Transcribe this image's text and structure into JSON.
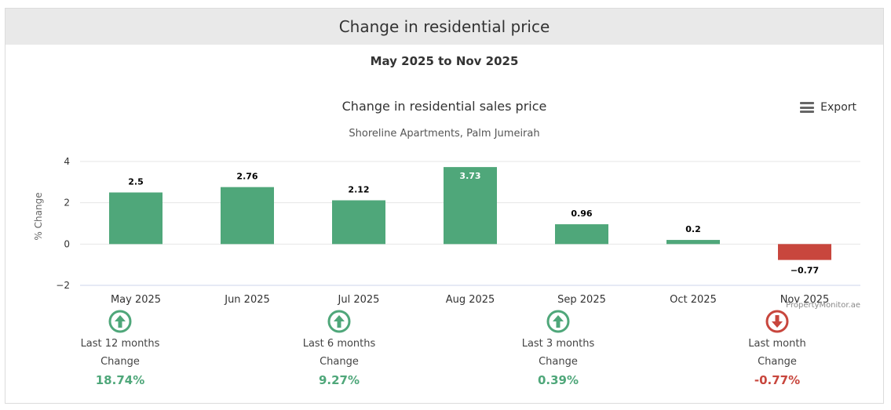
{
  "header": {
    "title": "Change in residential price"
  },
  "period": "May 2025 to Nov 2025",
  "export_label": "Export",
  "colors": {
    "positive": "#4fa77a",
    "negative": "#c8463d"
  },
  "chart_data": {
    "type": "bar",
    "title": "Change in residential sales price",
    "subtitle": "Shoreline Apartments, Palm Jumeirah",
    "ylabel": "% Change",
    "ylim": [
      -2,
      4
    ],
    "yticks": [
      "4",
      "2",
      "0",
      "−2"
    ],
    "categories": [
      "May 2025",
      "Jun 2025",
      "Jul 2025",
      "Aug 2025",
      "Sep 2025",
      "Oct 2025",
      "Nov 2025"
    ],
    "values": [
      2.5,
      2.76,
      2.12,
      3.73,
      0.96,
      0.2,
      -0.77
    ],
    "value_labels": [
      "2.5",
      "2.76",
      "2.12",
      "3.73",
      "0.96",
      "0.2",
      "−0.77"
    ],
    "credit": "PropertyMonitor.ae"
  },
  "stats": [
    {
      "label": "Last 12 months",
      "sub": "Change",
      "value": "18.74%",
      "direction": "up"
    },
    {
      "label": "Last 6 months",
      "sub": "Change",
      "value": "9.27%",
      "direction": "up"
    },
    {
      "label": "Last 3 months",
      "sub": "Change",
      "value": "0.39%",
      "direction": "up"
    },
    {
      "label": "Last month",
      "sub": "Change",
      "value": "-0.77%",
      "direction": "down"
    }
  ]
}
